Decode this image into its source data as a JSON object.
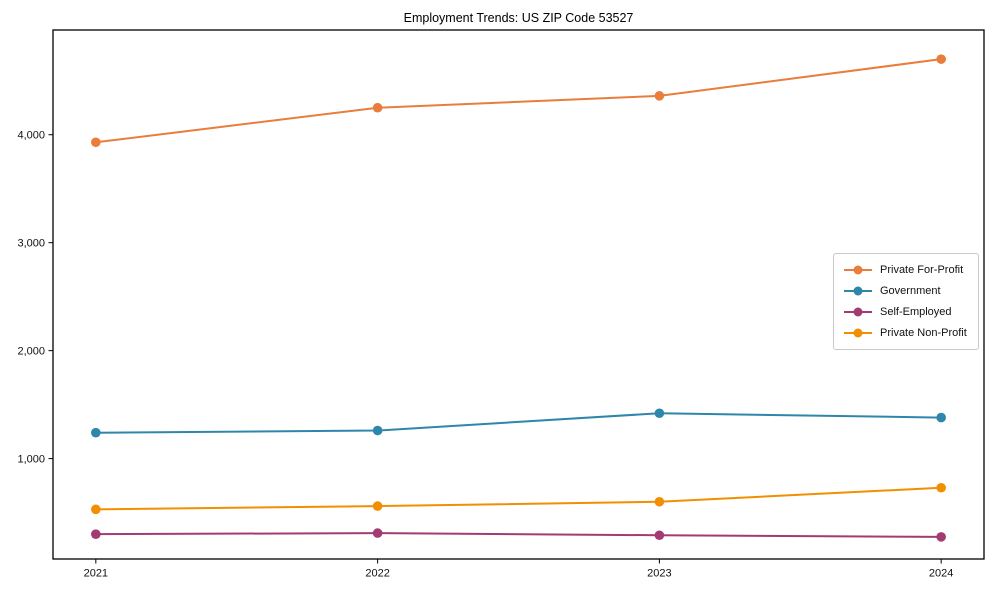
{
  "chart_data": {
    "type": "line",
    "title": "Employment Trends: US ZIP Code 53527",
    "categories": [
      "2021",
      "2022",
      "2023",
      "2024"
    ],
    "series": [
      {
        "name": "Private For-Profit",
        "color": "#e87d3c",
        "values": [
          3930,
          4250,
          4360,
          4700
        ]
      },
      {
        "name": "Government",
        "color": "#2e86ab",
        "values": [
          1240,
          1260,
          1420,
          1380
        ]
      },
      {
        "name": "Self-Employed",
        "color": "#a23b72",
        "values": [
          300,
          310,
          290,
          275
        ]
      },
      {
        "name": "Private Non-Profit",
        "color": "#f18f01",
        "values": [
          530,
          560,
          600,
          730
        ]
      }
    ],
    "yticks": {
      "values": [
        1000,
        2000,
        3000,
        4000
      ],
      "labels": [
        "1,000",
        "2,000",
        "3,000",
        "4,000"
      ]
    },
    "ylim": [
      70,
      4970
    ],
    "xlabel": "",
    "ylabel": "",
    "grid": false,
    "legend_position": "center-right",
    "marker": "circle",
    "background": "#ffffff",
    "axis_color": "#000000"
  }
}
